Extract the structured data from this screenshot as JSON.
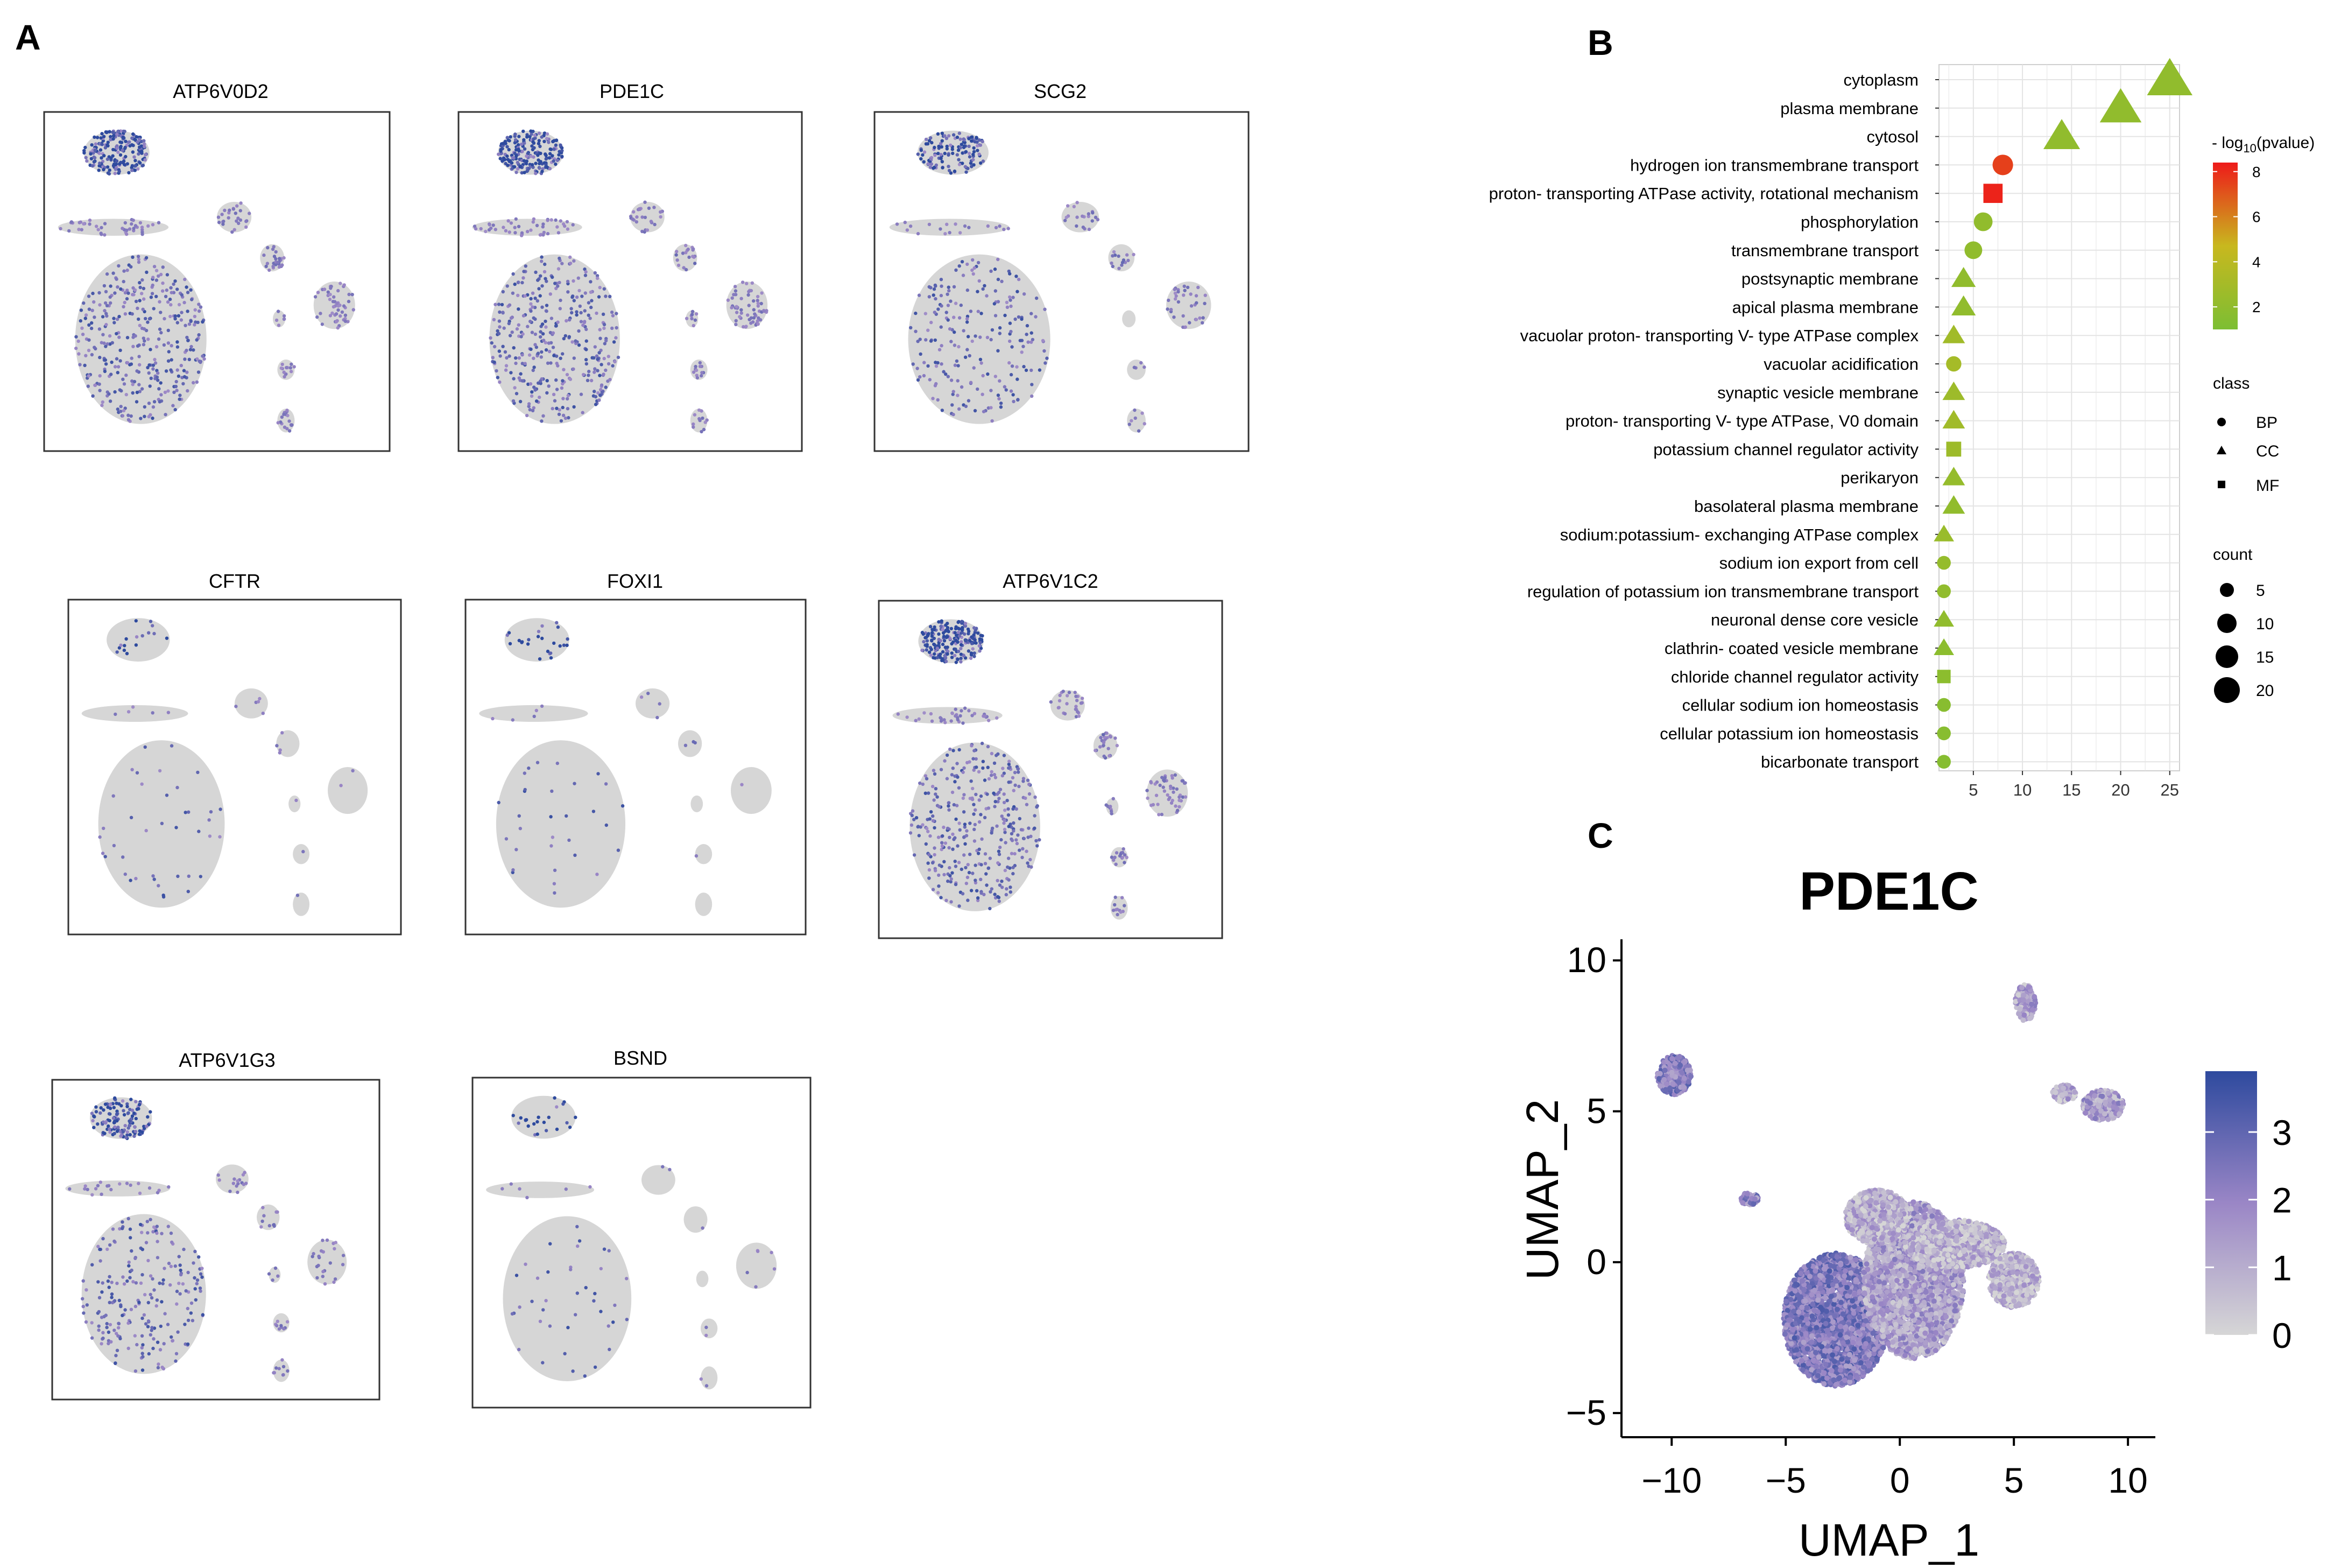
{
  "panel_labels": {
    "a": "A",
    "b": "B",
    "c": "C"
  },
  "colors": {
    "expr_low": "#d6d6d6",
    "expr_mid": "#9a86c6",
    "expr_high": "#2e4a9e",
    "pval_low": "#7cbe33",
    "pval_mid": "#c8b81e",
    "pval_high": "#ee1a1a",
    "frame": "#333333",
    "grid": "#e4e4e4"
  },
  "chart_data": [
    {
      "type": "scatter",
      "kind": "umap_feature_grid",
      "panel": "A",
      "genes": [
        {
          "title": "ATP6V0D2",
          "expression": "high"
        },
        {
          "title": "PDE1C",
          "expression": "high"
        },
        {
          "title": "SCG2",
          "expression": "medium"
        },
        {
          "title": "CFTR",
          "expression": "low"
        },
        {
          "title": "FOXI1",
          "expression": "low"
        },
        {
          "title": "ATP6V1C2",
          "expression": "high"
        },
        {
          "title": "ATP6V1G3",
          "expression": "medium"
        },
        {
          "title": "BSND",
          "expression": "low"
        }
      ]
    },
    {
      "type": "scatter",
      "kind": "go_enrichment_dotplot",
      "panel": "B",
      "xlabel": "",
      "ylabel": "",
      "xlim": [
        1.5,
        26
      ],
      "xticks": [
        5,
        10,
        15,
        20,
        25
      ],
      "terms": [
        {
          "term": "cytoplasm",
          "count": 25,
          "class": "CC",
          "neglog10p": 2.0
        },
        {
          "term": "plasma membrane",
          "count": 20,
          "class": "CC",
          "neglog10p": 2.0
        },
        {
          "term": "cytosol",
          "count": 14,
          "class": "CC",
          "neglog10p": 2.0
        },
        {
          "term": "hydrogen ion transmembrane transport",
          "count": 8,
          "class": "BP",
          "neglog10p": 7.5
        },
        {
          "term": "proton- transporting ATPase activity, rotational mechanism",
          "count": 7,
          "class": "MF",
          "neglog10p": 8.2
        },
        {
          "term": "phosphorylation",
          "count": 6,
          "class": "BP",
          "neglog10p": 2.0
        },
        {
          "term": "transmembrane transport",
          "count": 5,
          "class": "BP",
          "neglog10p": 2.0
        },
        {
          "term": "postsynaptic membrane",
          "count": 4,
          "class": "CC",
          "neglog10p": 2.0
        },
        {
          "term": "apical plasma membrane",
          "count": 4,
          "class": "CC",
          "neglog10p": 2.0
        },
        {
          "term": "vacuolar proton- transporting V- type ATPase complex",
          "count": 3,
          "class": "CC",
          "neglog10p": 2.8
        },
        {
          "term": "vacuolar acidification",
          "count": 3,
          "class": "BP",
          "neglog10p": 3.0
        },
        {
          "term": "synaptic vesicle membrane",
          "count": 3,
          "class": "CC",
          "neglog10p": 2.6
        },
        {
          "term": "proton- transporting V- type ATPase, V0 domain",
          "count": 3,
          "class": "CC",
          "neglog10p": 2.8
        },
        {
          "term": "potassium channel regulator activity",
          "count": 3,
          "class": "MF",
          "neglog10p": 2.6
        },
        {
          "term": "perikaryon",
          "count": 3,
          "class": "CC",
          "neglog10p": 2.2
        },
        {
          "term": "basolateral plasma membrane",
          "count": 3,
          "class": "CC",
          "neglog10p": 2.0
        },
        {
          "term": "sodium:potassium- exchanging ATPase complex",
          "count": 2,
          "class": "CC",
          "neglog10p": 2.4
        },
        {
          "term": "sodium ion export from cell",
          "count": 2,
          "class": "BP",
          "neglog10p": 2.2
        },
        {
          "term": "regulation of potassium ion transmembrane transport",
          "count": 2,
          "class": "BP",
          "neglog10p": 2.0
        },
        {
          "term": "neuronal dense core vesicle",
          "count": 2,
          "class": "CC",
          "neglog10p": 2.0
        },
        {
          "term": "clathrin- coated vesicle membrane",
          "count": 2,
          "class": "CC",
          "neglog10p": 1.8
        },
        {
          "term": "chloride channel regulator activity",
          "count": 2,
          "class": "MF",
          "neglog10p": 1.8
        },
        {
          "term": "cellular sodium ion homeostasis",
          "count": 2,
          "class": "BP",
          "neglog10p": 1.6
        },
        {
          "term": "cellular potassium ion homeostasis",
          "count": 2,
          "class": "BP",
          "neglog10p": 1.6
        },
        {
          "term": "bicarbonate transport",
          "count": 2,
          "class": "BP",
          "neglog10p": 1.5
        }
      ],
      "color_legend": {
        "title_prefix": "- log",
        "title_sub": "10",
        "title_suffix": "(pvalue)",
        "ticks": [
          8,
          6,
          4,
          2
        ],
        "range": [
          1,
          8.4
        ]
      },
      "class_legend": {
        "title": "class",
        "items": [
          {
            "label": "BP",
            "shape": "circle"
          },
          {
            "label": "CC",
            "shape": "triangle"
          },
          {
            "label": "MF",
            "shape": "square"
          }
        ]
      },
      "size_legend": {
        "title": "count",
        "items": [
          5,
          10,
          15,
          20
        ]
      }
    },
    {
      "type": "scatter",
      "kind": "umap_feature",
      "panel": "C",
      "title": "PDE1C",
      "xlabel": "UMAP_1",
      "ylabel": "UMAP_2",
      "xlim": [
        -12.2,
        11.2
      ],
      "ylim": [
        -5.8,
        10.7
      ],
      "xticks": [
        -10,
        -5,
        0,
        5,
        10
      ],
      "yticks": [
        -5,
        0,
        5,
        10
      ],
      "xtick_labels": [
        "−10",
        "−5",
        "0",
        "5",
        "10"
      ],
      "ytick_labels": [
        "−5",
        "0",
        "5",
        "10"
      ],
      "colorbar": {
        "ticks": [
          0,
          1,
          2,
          3
        ],
        "range": [
          0,
          3.9
        ]
      },
      "clusters": [
        {
          "name": "left-large",
          "cx": -2.8,
          "cy": -1.9,
          "rx": 2.3,
          "ry": 2.2,
          "level": 2.3
        },
        {
          "name": "center",
          "cx": 0.6,
          "cy": -0.6,
          "rx": 2.2,
          "ry": 2.6,
          "level": 1.3
        },
        {
          "name": "upper-center",
          "cx": -1.0,
          "cy": 1.5,
          "rx": 1.4,
          "ry": 0.9,
          "level": 0.9
        },
        {
          "name": "bridge",
          "cx": 2.4,
          "cy": 0.6,
          "rx": 2.2,
          "ry": 0.8,
          "level": 0.8
        },
        {
          "name": "right",
          "cx": 5.0,
          "cy": -0.6,
          "rx": 1.1,
          "ry": 0.9,
          "level": 0.8
        },
        {
          "name": "top-left",
          "cx": -9.9,
          "cy": 6.2,
          "rx": 0.75,
          "ry": 0.65,
          "level": 2.2
        },
        {
          "name": "small-left",
          "cx": -6.6,
          "cy": 2.1,
          "rx": 0.4,
          "ry": 0.2,
          "level": 2.0
        },
        {
          "name": "top-right",
          "cx": 5.5,
          "cy": 8.6,
          "rx": 0.45,
          "ry": 0.6,
          "level": 1.2
        },
        {
          "name": "right-upper",
          "cx": 8.9,
          "cy": 5.2,
          "rx": 0.9,
          "ry": 0.5,
          "level": 1.3
        },
        {
          "name": "right-mid",
          "cx": 7.2,
          "cy": 5.6,
          "rx": 0.5,
          "ry": 0.3,
          "level": 1.0
        }
      ]
    }
  ]
}
